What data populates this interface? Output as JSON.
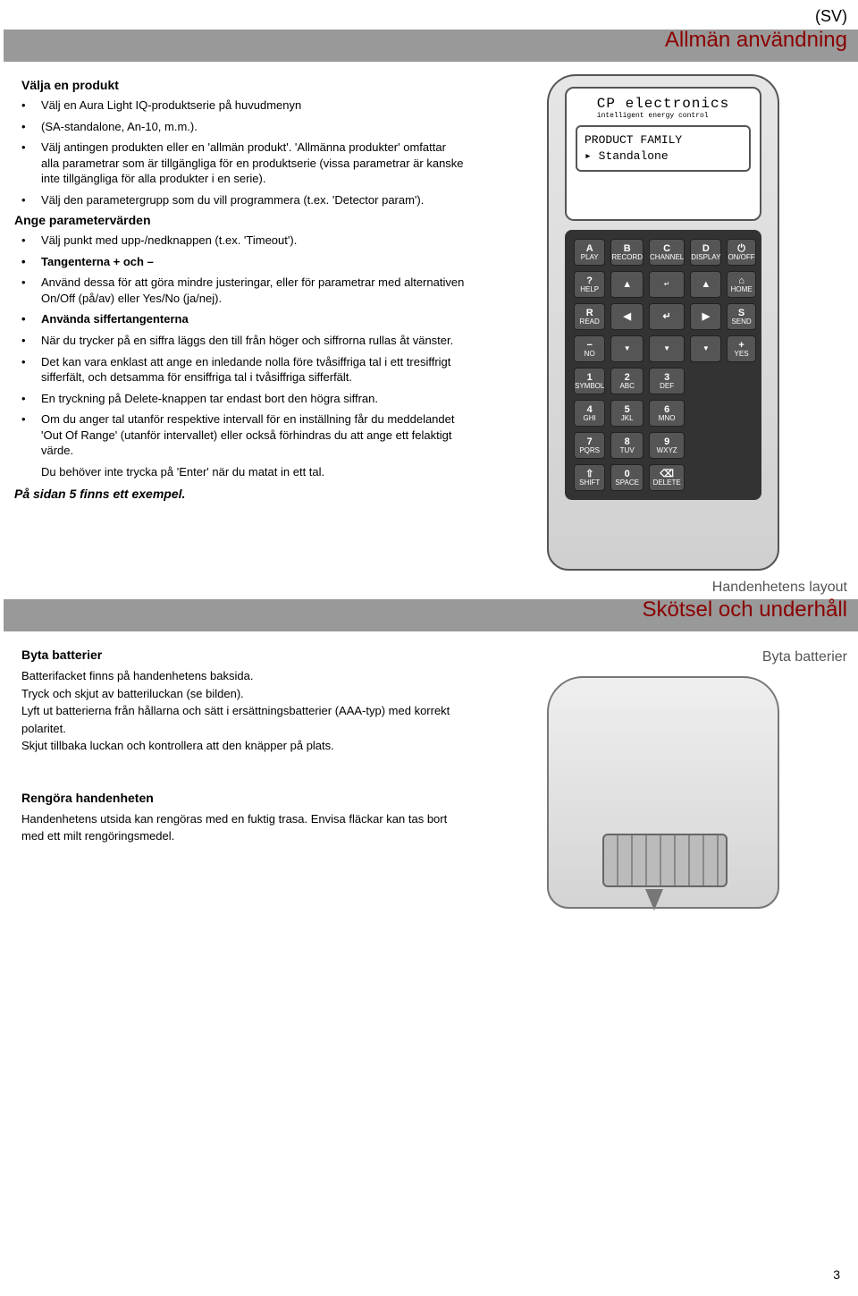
{
  "lang_code": "(SV)",
  "banner1": "Allmän användning",
  "banner2": "Skötsel och underhåll",
  "s1_h": "Välja en produkt",
  "s1": [
    "Välj en Aura Light IQ-produktserie på huvudmenyn",
    "(SA-standalone, An-10, m.m.).",
    "Välj antingen produkten eller en 'allmän produkt'. 'Allmänna produkter' omfattar alla parametrar som är tillgängliga för en produktserie (vissa parametrar är kanske inte tillgängliga för alla produkter i en serie).",
    "Välj den parametergrupp som du vill programmera (t.ex. 'Detector param')."
  ],
  "s2_h": "Ange parametervärden",
  "s2_a": "Välj punkt med upp-/nedknappen (t.ex. 'Timeout').",
  "s2_b": "Tangenterna + och –",
  "s2_c": "Använd dessa för att göra mindre justeringar, eller för parametrar med alternativen On/Off (på/av) eller Yes/No (ja/nej).",
  "s2_d": "Använda siffertangenterna",
  "s2_e": "När du trycker på en siffra läggs den till från höger och siffrorna rullas åt vänster.",
  "s2_f": "Det kan vara enklast att ange en inledande nolla före tvåsiffriga tal i ett tresiffrigt sifferfält, och detsamma för ensiffriga tal i tvåsiffriga sifferfält.",
  "s2_g": "En tryckning på Delete-knappen tar endast bort den högra siffran.",
  "s2_h_txt": "Om du anger tal utanför respektive intervall för en inställning får du meddelandet 'Out Of Range' (utanför intervallet) eller också förhindras du att ange ett felaktigt värde.",
  "s2_i": "Du behöver inte trycka på 'Enter' när du matat in ett tal.",
  "example_note": "På sidan 5 finns ett exempel.",
  "device": {
    "brand_main": "CP electronics",
    "brand_sub": "intelligent energy control",
    "line1": "PRODUCT FAMILY",
    "line2": "Standalone",
    "caption": "Handenhetens layout",
    "keys": [
      [
        "A",
        "PLAY"
      ],
      [
        "B",
        "RECORD"
      ],
      [
        "C",
        "CHANNEL"
      ],
      [
        "D",
        "DISPLAY"
      ],
      [
        "⏻",
        "ON/OFF"
      ],
      [
        "?",
        "HELP"
      ],
      [
        "▲",
        ""
      ],
      [
        "",
        "↵"
      ],
      [
        "▲",
        ""
      ],
      [
        "⌂",
        "HOME"
      ],
      [
        "R",
        "READ"
      ],
      [
        "◀",
        ""
      ],
      [
        "↵",
        ""
      ],
      [
        "▶",
        ""
      ],
      [
        "S",
        "SEND"
      ],
      [
        "−",
        "NO"
      ],
      [
        "",
        "▼"
      ],
      [
        "",
        "▼"
      ],
      [
        "",
        "▼"
      ],
      [
        "+",
        "YES"
      ],
      [
        "1",
        "SYMBOL"
      ],
      [
        "2",
        "ABC"
      ],
      [
        "3",
        "DEF"
      ],
      [
        "",
        ""
      ],
      [
        "",
        ""
      ],
      [
        "4",
        "GHI"
      ],
      [
        "5",
        "JKL"
      ],
      [
        "6",
        "MNO"
      ],
      [
        "",
        ""
      ],
      [
        "",
        ""
      ],
      [
        "7",
        "PQRS"
      ],
      [
        "8",
        "TUV"
      ],
      [
        "9",
        "WXYZ"
      ],
      [
        "",
        ""
      ],
      [
        "",
        ""
      ],
      [
        "⇧",
        "SHIFT"
      ],
      [
        "0",
        "SPACE"
      ],
      [
        "⌫",
        "DELETE"
      ],
      [
        "",
        ""
      ],
      [
        "",
        ""
      ]
    ]
  },
  "batt_h": "Byta batterier",
  "batt_caption": "Byta batterier",
  "batt": [
    "Batterifacket finns på handenhetens baksida.",
    "Tryck och skjut av batteriluckan (se bilden).",
    "Lyft ut batterierna från hållarna och sätt i ersättningsbatterier (AAA-typ) med korrekt polaritet.",
    "Skjut tillbaka luckan och kontrollera att den knäpper på plats."
  ],
  "clean_h": "Rengöra handenheten",
  "clean_p": "Handenhetens utsida kan rengöras med en fuktig trasa. Envisa fläckar kan tas bort med ett milt rengöringsmedel.",
  "page_no": "3"
}
